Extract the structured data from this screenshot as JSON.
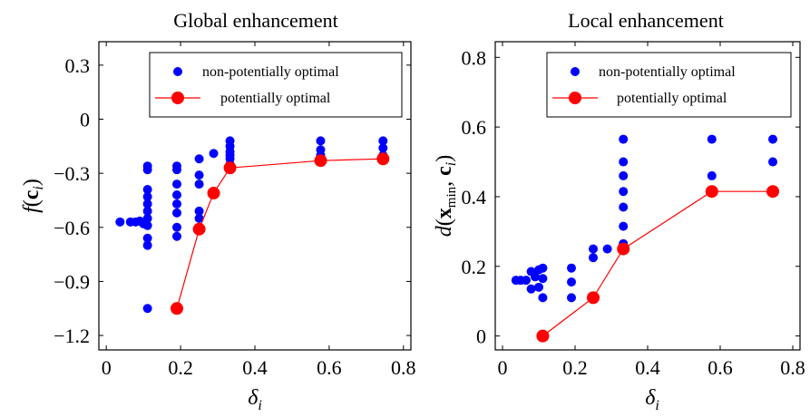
{
  "chart_data": [
    {
      "type": "scatter",
      "title": "Global enhancement",
      "xlabel": "δ",
      "xlabel_sub": "i",
      "ylabel": "f(c_i)",
      "xlim": [
        -0.02,
        0.82
      ],
      "ylim": [
        -1.28,
        0.43
      ],
      "x_ticks": [
        0,
        0.2,
        0.4,
        0.6,
        0.8
      ],
      "x_tick_labels": [
        "0",
        "0.2",
        "0.4",
        "0.6",
        "0.8"
      ],
      "y_ticks": [
        0.3,
        0,
        -0.3,
        -0.6,
        -0.9,
        -1.2
      ],
      "y_tick_labels": [
        "0.3",
        "0",
        "−0.3",
        "−0.6",
        "−0.9",
        "−1.2"
      ],
      "legend_position": "top-right",
      "colors": {
        "non_optimal": "#0000ff",
        "optimal": "#ff0000"
      },
      "series": [
        {
          "name": "non-potentially optimal",
          "style": "markers",
          "points": [
            [
              0.037,
              -0.57
            ],
            [
              0.065,
              -0.57
            ],
            [
              0.079,
              -0.57
            ],
            [
              0.09,
              -0.565
            ],
            [
              0.1,
              -0.58
            ],
            [
              0.111,
              -0.26
            ],
            [
              0.111,
              -0.28
            ],
            [
              0.111,
              -0.39
            ],
            [
              0.111,
              -0.43
            ],
            [
              0.111,
              -0.47
            ],
            [
              0.111,
              -0.51
            ],
            [
              0.111,
              -0.55
            ],
            [
              0.111,
              -0.59
            ],
            [
              0.111,
              -0.66
            ],
            [
              0.111,
              -0.7
            ],
            [
              0.111,
              -1.05
            ],
            [
              0.19,
              -0.26
            ],
            [
              0.19,
              -0.28
            ],
            [
              0.19,
              -0.36
            ],
            [
              0.19,
              -0.42
            ],
            [
              0.19,
              -0.47
            ],
            [
              0.19,
              -0.52
            ],
            [
              0.19,
              -0.6
            ],
            [
              0.19,
              -0.65
            ],
            [
              0.25,
              -0.22
            ],
            [
              0.25,
              -0.31
            ],
            [
              0.25,
              -0.36
            ],
            [
              0.25,
              -0.51
            ],
            [
              0.25,
              -0.55
            ],
            [
              0.289,
              -0.19
            ],
            [
              0.333,
              -0.12
            ],
            [
              0.333,
              -0.15
            ],
            [
              0.333,
              -0.18
            ],
            [
              0.333,
              -0.2
            ],
            [
              0.333,
              -0.22
            ],
            [
              0.333,
              -0.25
            ],
            [
              0.577,
              -0.12
            ],
            [
              0.577,
              -0.17
            ],
            [
              0.577,
              -0.2
            ],
            [
              0.745,
              -0.12
            ],
            [
              0.745,
              -0.16
            ],
            [
              0.745,
              -0.2
            ]
          ]
        },
        {
          "name": "potentially optimal",
          "style": "line+markers",
          "points": [
            [
              0.19,
              -1.05
            ],
            [
              0.25,
              -0.61
            ],
            [
              0.289,
              -0.41
            ],
            [
              0.333,
              -0.27
            ],
            [
              0.577,
              -0.23
            ],
            [
              0.745,
              -0.22
            ]
          ]
        }
      ]
    },
    {
      "type": "scatter",
      "title": "Local enhancement",
      "xlabel": "δ",
      "xlabel_sub": "i",
      "ylabel": "d(x_min, c_i)",
      "xlim": [
        -0.02,
        0.82
      ],
      "ylim": [
        -0.04,
        0.845
      ],
      "x_ticks": [
        0,
        0.2,
        0.4,
        0.6,
        0.8
      ],
      "x_tick_labels": [
        "0",
        "0.2",
        "0.4",
        "0.6",
        "0.8"
      ],
      "y_ticks": [
        0,
        0.2,
        0.4,
        0.6,
        0.8
      ],
      "y_tick_labels": [
        "0",
        "0.2",
        "0.4",
        "0.6",
        "0.8"
      ],
      "legend_position": "top-right",
      "colors": {
        "non_optimal": "#0000ff",
        "optimal": "#ff0000"
      },
      "series": [
        {
          "name": "non-potentially optimal",
          "style": "markers",
          "points": [
            [
              0.037,
              0.16
            ],
            [
              0.05,
              0.16
            ],
            [
              0.065,
              0.16
            ],
            [
              0.079,
              0.185
            ],
            [
              0.09,
              0.17
            ],
            [
              0.1,
              0.19
            ],
            [
              0.111,
              0.195
            ],
            [
              0.079,
              0.135
            ],
            [
              0.1,
              0.14
            ],
            [
              0.111,
              0.11
            ],
            [
              0.111,
              0.165
            ],
            [
              0.19,
              0.195
            ],
            [
              0.19,
              0.155
            ],
            [
              0.19,
              0.11
            ],
            [
              0.25,
              0.25
            ],
            [
              0.25,
              0.225
            ],
            [
              0.289,
              0.25
            ],
            [
              0.333,
              0.565
            ],
            [
              0.333,
              0.5
            ],
            [
              0.333,
              0.46
            ],
            [
              0.333,
              0.415
            ],
            [
              0.333,
              0.37
            ],
            [
              0.333,
              0.315
            ],
            [
              0.333,
              0.265
            ],
            [
              0.577,
              0.565
            ],
            [
              0.577,
              0.46
            ],
            [
              0.745,
              0.565
            ],
            [
              0.745,
              0.5
            ]
          ]
        },
        {
          "name": "potentially optimal",
          "style": "line+markers",
          "points": [
            [
              0.111,
              0
            ],
            [
              0.25,
              0.11
            ],
            [
              0.333,
              0.25
            ],
            [
              0.577,
              0.415
            ],
            [
              0.745,
              0.415
            ]
          ]
        }
      ]
    }
  ]
}
